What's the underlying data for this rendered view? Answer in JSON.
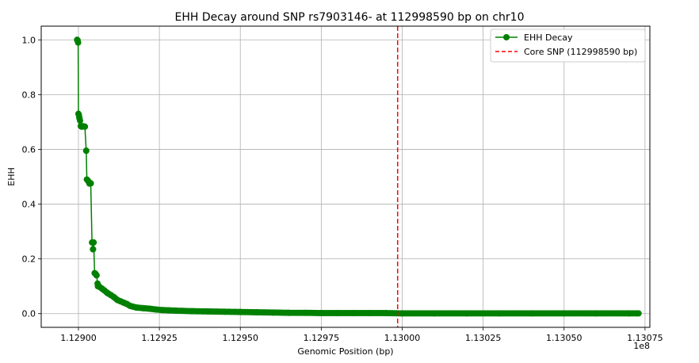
{
  "chart_data": {
    "type": "line",
    "title": "EHH Decay around SNP rs7903146- at 112998590 bp on chr10",
    "xlabel": "Genomic Position (bp)",
    "ylabel": "EHH",
    "x_offset_label": "1e8",
    "xlim": [
      112888500,
      113076500
    ],
    "ylim": [
      -0.05,
      1.05
    ],
    "grid": true,
    "legend_position": "top-right",
    "x_ticks": [
      {
        "value": 112900000,
        "label": "1.12900"
      },
      {
        "value": 112925000,
        "label": "1.12925"
      },
      {
        "value": 112950000,
        "label": "1.12950"
      },
      {
        "value": 112975000,
        "label": "1.12975"
      },
      {
        "value": 113000000,
        "label": "1.13000"
      },
      {
        "value": 113025000,
        "label": "1.13025"
      },
      {
        "value": 113050000,
        "label": "1.13050"
      },
      {
        "value": 113075000,
        "label": "1.13075"
      }
    ],
    "y_ticks": [
      {
        "value": 0.0,
        "label": "0.0"
      },
      {
        "value": 0.2,
        "label": "0.2"
      },
      {
        "value": 0.4,
        "label": "0.4"
      },
      {
        "value": 0.6,
        "label": "0.6"
      },
      {
        "value": 0.8,
        "label": "0.8"
      },
      {
        "value": 1.0,
        "label": "1.0"
      }
    ],
    "series": [
      {
        "name": "EHH Decay",
        "color": "#008000",
        "marker": "circle",
        "x": [
          112899600,
          112899750,
          112899900,
          112900000,
          112900150,
          112900300,
          112900500,
          112900700,
          112901000,
          112901300,
          112902000,
          112902400,
          112902600,
          112903000,
          112903400,
          112903800,
          112904200,
          112904500,
          112904700,
          112905000,
          112905300,
          112905600,
          112906000,
          112906500,
          112907200,
          112908000,
          112909000,
          112910000,
          112911000,
          112912000,
          112913000,
          112914000,
          112915000,
          112916000,
          112917000,
          112918000,
          112920000,
          112922000,
          112924000,
          112926000,
          112928000,
          112930000,
          112935000,
          112940000,
          112945000,
          112950000,
          112955000,
          112960000,
          112965000,
          112970000,
          112975000,
          112980000,
          112985000,
          112990000,
          112995000,
          113000000,
          113010000,
          113020000,
          113030000,
          113040000,
          113050000,
          113060000,
          113070000,
          113073000
        ],
        "y": [
          1.0,
          0.998,
          0.99,
          0.73,
          0.725,
          0.715,
          0.705,
          0.685,
          0.683,
          0.685,
          0.683,
          0.595,
          0.49,
          0.485,
          0.475,
          0.476,
          0.26,
          0.235,
          0.26,
          0.148,
          0.145,
          0.14,
          0.1,
          0.098,
          0.092,
          0.085,
          0.075,
          0.068,
          0.06,
          0.05,
          0.045,
          0.04,
          0.035,
          0.028,
          0.025,
          0.022,
          0.02,
          0.018,
          0.015,
          0.013,
          0.012,
          0.011,
          0.009,
          0.008,
          0.007,
          0.006,
          0.005,
          0.004,
          0.003,
          0.003,
          0.002,
          0.002,
          0.002,
          0.002,
          0.002,
          0.001,
          0.001,
          0.001,
          0.001,
          0.001,
          0.001,
          0.001,
          0.001,
          0.001
        ]
      },
      {
        "name": "Core SNP (112998590 bp)",
        "color": "#ff0000",
        "style": "dashed-vertical",
        "x_value": 112998590
      }
    ]
  }
}
